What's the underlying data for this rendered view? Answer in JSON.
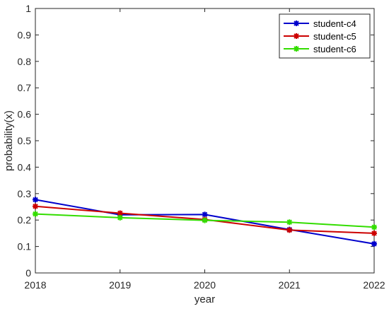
{
  "chart_data": {
    "type": "line",
    "xlabel": "year",
    "ylabel": "probability(x)",
    "x": [
      2018,
      2019,
      2020,
      2021,
      2022
    ],
    "x_ticks": [
      "2018",
      "2019",
      "2020",
      "2021",
      "2022"
    ],
    "y_ticks": [
      "0",
      "0.1",
      "0.2",
      "0.3",
      "0.4",
      "0.5",
      "0.6",
      "0.7",
      "0.8",
      "0.9",
      "1"
    ],
    "xlim": [
      2018,
      2022
    ],
    "ylim": [
      0,
      1
    ],
    "grid": false,
    "legend_position": "top-right",
    "marker": "asterisk",
    "series": [
      {
        "name": "student-c4",
        "color": "#0000cc",
        "values": [
          0.277,
          0.22,
          0.221,
          0.164,
          0.11
        ]
      },
      {
        "name": "student-c5",
        "color": "#cc0000",
        "values": [
          0.252,
          0.226,
          0.202,
          0.162,
          0.15
        ]
      },
      {
        "name": "student-c6",
        "color": "#33dd00",
        "values": [
          0.223,
          0.209,
          0.199,
          0.192,
          0.173
        ]
      }
    ]
  }
}
